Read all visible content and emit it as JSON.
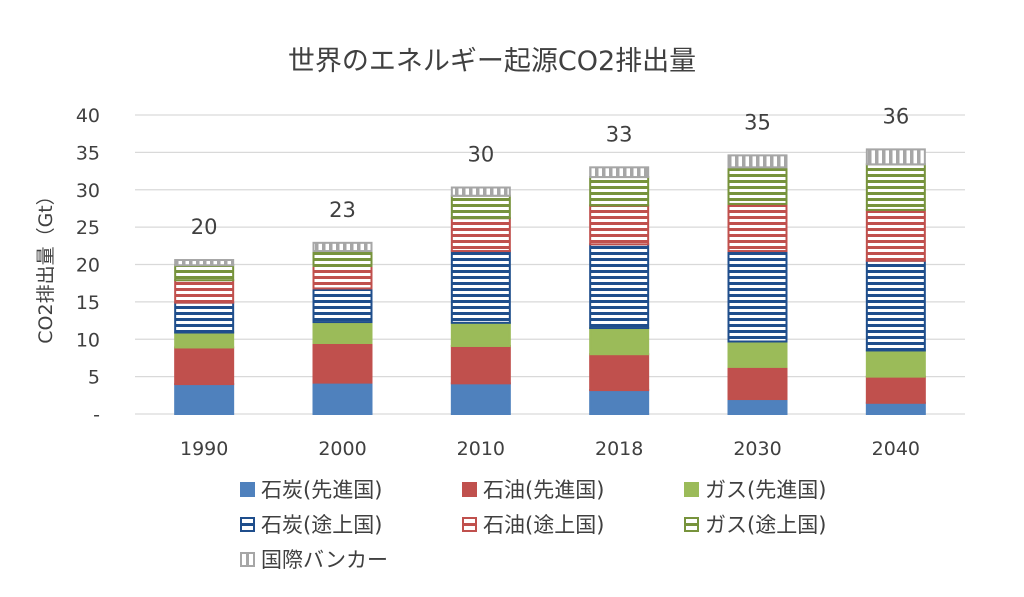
{
  "chart_data": {
    "type": "bar",
    "stacked": true,
    "title": "世界のエネルギー起源CO2排出量",
    "xlabel": "",
    "ylabel": "CO2排出量（Gt）",
    "ylim": [
      0,
      40
    ],
    "yticks": [
      0,
      5,
      10,
      15,
      20,
      25,
      30,
      35,
      40
    ],
    "ytick_labels": [
      "-",
      "5",
      "10",
      "15",
      "20",
      "25",
      "30",
      "35",
      "40"
    ],
    "grid": true,
    "legend_position": "bottom",
    "categories": [
      "1990",
      "2000",
      "2010",
      "2018",
      "2030",
      "2040"
    ],
    "totals": [
      "20",
      "23",
      "30",
      "33",
      "35",
      "36"
    ],
    "series": [
      {
        "name": "石炭(先進国)",
        "color": "#4F81BD",
        "pattern": "solid",
        "values": [
          4.0,
          4.2,
          4.1,
          3.2,
          2.0,
          1.5
        ]
      },
      {
        "name": "石油(先進国)",
        "color": "#C0504D",
        "pattern": "solid",
        "values": [
          4.9,
          5.3,
          5.0,
          4.8,
          4.3,
          3.5
        ]
      },
      {
        "name": "ガス(先進国)",
        "color": "#9BBB59",
        "pattern": "solid",
        "values": [
          2.0,
          2.8,
          3.1,
          3.5,
          3.4,
          3.5
        ]
      },
      {
        "name": "石炭(途上国)",
        "color": "#1F4E8C",
        "pattern": "hstripes",
        "values": [
          4.0,
          4.5,
          9.6,
          11.2,
          12.1,
          12.0
        ]
      },
      {
        "name": "石油(途上国)",
        "color": "#C0504D",
        "pattern": "hstripes",
        "values": [
          3.0,
          3.0,
          4.4,
          5.2,
          6.3,
          6.8
        ]
      },
      {
        "name": "ガス(途上国)",
        "color": "#77933C",
        "pattern": "hstripes",
        "values": [
          2.0,
          2.0,
          3.0,
          3.8,
          4.9,
          6.1
        ]
      },
      {
        "name": "国際バンカー",
        "color": "#A6A6A6",
        "pattern": "vstripes",
        "values": [
          0.7,
          1.1,
          1.1,
          1.3,
          1.6,
          2.0
        ]
      }
    ]
  }
}
